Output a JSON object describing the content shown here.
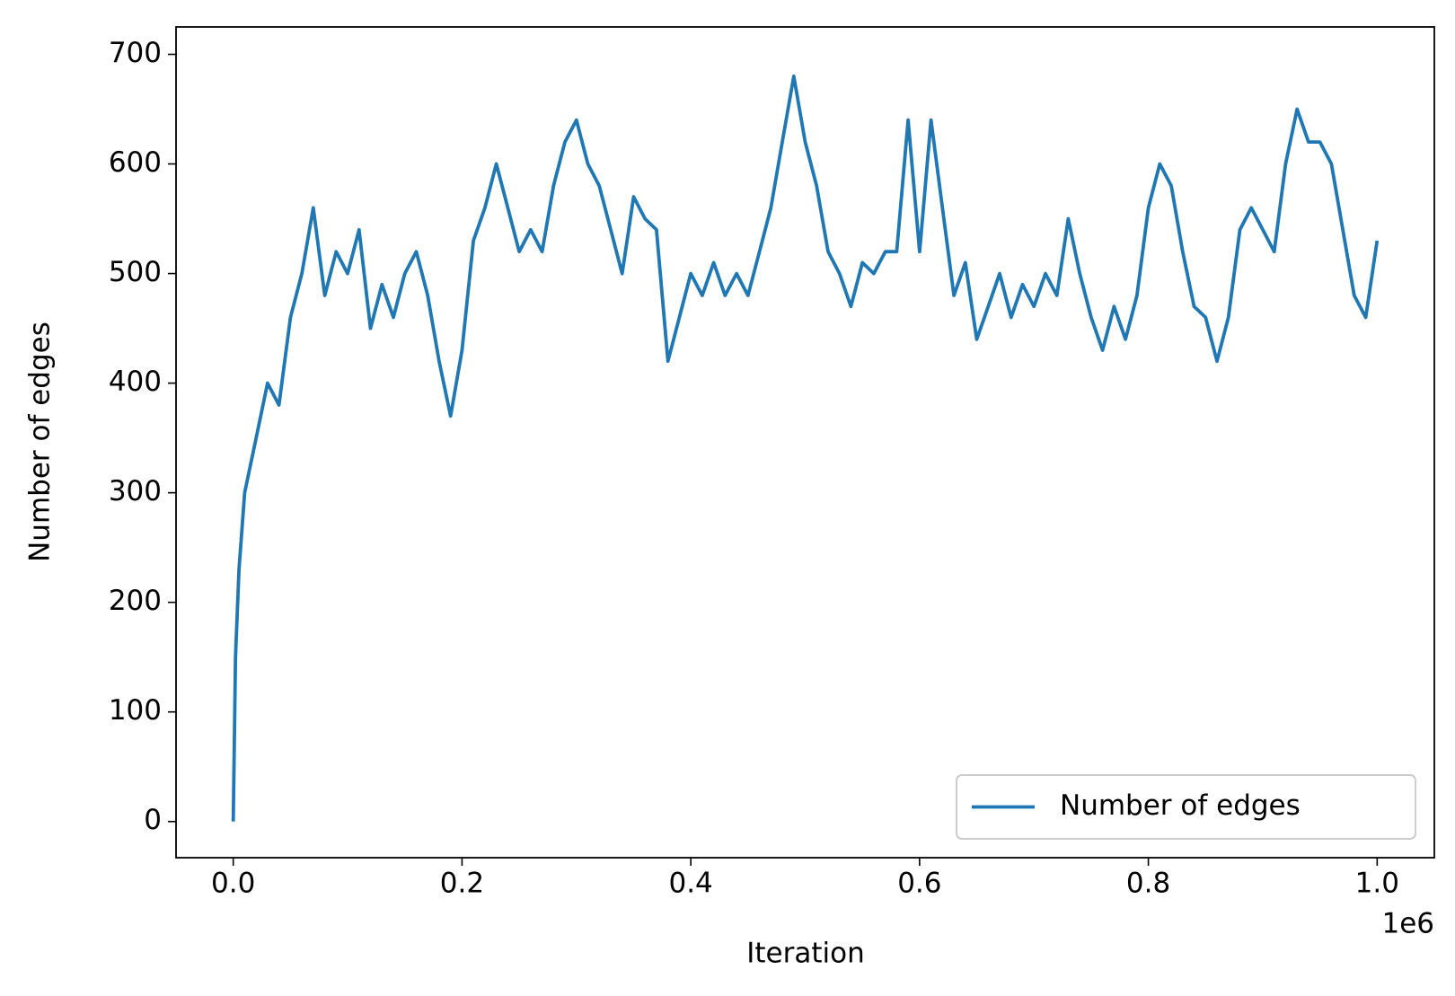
{
  "chart_data": {
    "type": "line",
    "xlabel": "Iteration",
    "ylabel": "Number of edges",
    "x_offset_label": "1e6",
    "x": [
      0,
      2000,
      5000,
      10000,
      20000,
      30000,
      40000,
      50000,
      60000,
      70000,
      80000,
      90000,
      100000,
      110000,
      120000,
      130000,
      140000,
      150000,
      160000,
      170000,
      180000,
      190000,
      200000,
      210000,
      220000,
      230000,
      240000,
      250000,
      260000,
      270000,
      280000,
      290000,
      300000,
      310000,
      320000,
      330000,
      340000,
      350000,
      360000,
      370000,
      380000,
      390000,
      400000,
      410000,
      420000,
      430000,
      440000,
      450000,
      460000,
      470000,
      480000,
      490000,
      500000,
      510000,
      520000,
      530000,
      540000,
      550000,
      560000,
      570000,
      580000,
      590000,
      600000,
      610000,
      620000,
      630000,
      640000,
      650000,
      660000,
      670000,
      680000,
      690000,
      700000,
      710000,
      720000,
      730000,
      740000,
      750000,
      760000,
      770000,
      780000,
      790000,
      800000,
      810000,
      820000,
      830000,
      840000,
      850000,
      860000,
      870000,
      880000,
      890000,
      900000,
      910000,
      920000,
      930000,
      940000,
      950000,
      960000,
      970000,
      980000,
      990000,
      1000000
    ],
    "series": [
      {
        "name": "Number of edges",
        "color": "#1f77b4",
        "values": [
          0,
          150,
          230,
          300,
          350,
          400,
          380,
          460,
          500,
          560,
          480,
          520,
          500,
          540,
          450,
          490,
          460,
          500,
          520,
          480,
          420,
          370,
          430,
          530,
          560,
          600,
          560,
          520,
          540,
          520,
          580,
          620,
          640,
          600,
          580,
          540,
          500,
          570,
          550,
          540,
          420,
          460,
          500,
          480,
          510,
          480,
          500,
          480,
          520,
          560,
          620,
          680,
          620,
          580,
          520,
          500,
          470,
          510,
          500,
          520,
          520,
          640,
          520,
          640,
          560,
          480,
          510,
          440,
          470,
          500,
          460,
          490,
          470,
          500,
          480,
          550,
          500,
          460,
          430,
          470,
          440,
          480,
          560,
          600,
          580,
          520,
          470,
          460,
          420,
          460,
          540,
          560,
          540,
          520,
          600,
          650,
          620,
          620,
          600,
          540,
          480,
          460,
          530
        ]
      }
    ],
    "xlim": [
      -50000,
      1050000
    ],
    "xticks": [
      {
        "value": 0,
        "label": "0.0"
      },
      {
        "value": 200000,
        "label": "0.2"
      },
      {
        "value": 400000,
        "label": "0.4"
      },
      {
        "value": 600000,
        "label": "0.6"
      },
      {
        "value": 800000,
        "label": "0.8"
      },
      {
        "value": 1000000,
        "label": "1.0"
      }
    ],
    "ylim": [
      -33,
      725
    ],
    "yticks": [
      0,
      100,
      200,
      300,
      400,
      500,
      600,
      700
    ],
    "grid": false,
    "legend": "lower right"
  }
}
